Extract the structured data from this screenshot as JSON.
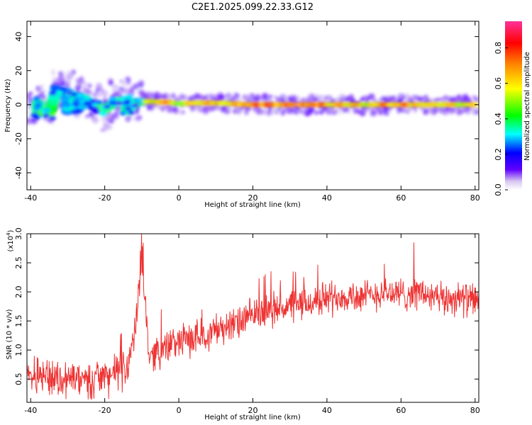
{
  "title": "C2E1.2025.099.22.33.G12",
  "chart_data": [
    {
      "type": "heatmap",
      "xlabel": "Height of straight line (km)",
      "ylabel": "Frequency (Hz)",
      "xlim": [
        -41,
        81
      ],
      "ylim": [
        -50,
        49
      ],
      "xticks": [
        -40,
        -20,
        0,
        20,
        40,
        60,
        80
      ],
      "yticks": [
        -40,
        -20,
        0,
        20,
        40
      ],
      "colorbar": {
        "label": "Normalized spectral amplitude",
        "range": [
          0,
          0.95
        ],
        "ticks": [
          0.0,
          0.2,
          0.4,
          0.6,
          0.8
        ]
      },
      "ridge": [
        {
          "x": -38,
          "y": 1.0,
          "amp": 0.4
        },
        {
          "x": -38,
          "y": -5.0,
          "amp": 0.45
        },
        {
          "x": -35,
          "y": -5.5,
          "amp": 0.5
        },
        {
          "x": -33,
          "y": 9.0,
          "amp": 0.3
        },
        {
          "x": -30,
          "y": 7.5,
          "amp": 0.3
        },
        {
          "x": -30,
          "y": -4.0,
          "amp": 0.3
        },
        {
          "x": -27,
          "y": 5.0,
          "amp": 0.35
        },
        {
          "x": -27,
          "y": -2.0,
          "amp": 0.3
        },
        {
          "x": -25,
          "y": 3.0,
          "amp": 0.35
        },
        {
          "x": -23,
          "y": -1.5,
          "amp": 0.3
        },
        {
          "x": -22,
          "y": 0.0,
          "amp": 0.4
        },
        {
          "x": -20,
          "y": -3.0,
          "amp": 0.5
        },
        {
          "x": -17,
          "y": 2.0,
          "amp": 0.35
        },
        {
          "x": -14,
          "y": 3.0,
          "amp": 0.4
        },
        {
          "x": -14,
          "y": -3.0,
          "amp": 0.4
        },
        {
          "x": -11,
          "y": 1.5,
          "amp": 0.4
        },
        {
          "x": -8,
          "y": 2.0,
          "amp": 0.6
        },
        {
          "x": -5,
          "y": 1.5,
          "amp": 0.7
        },
        {
          "x": -3,
          "y": 1.5,
          "amp": 0.85
        },
        {
          "x": 0,
          "y": 0.5,
          "amp": 0.5
        },
        {
          "x": 4,
          "y": 1.0,
          "amp": 0.7
        },
        {
          "x": 8,
          "y": 1.0,
          "amp": 0.75
        },
        {
          "x": 11,
          "y": 1.0,
          "amp": 0.7
        },
        {
          "x": 15,
          "y": 0.5,
          "amp": 0.75
        },
        {
          "x": 19,
          "y": 0.0,
          "amp": 0.8
        },
        {
          "x": 22,
          "y": 0.0,
          "amp": 0.85
        },
        {
          "x": 26,
          "y": 0.0,
          "amp": 0.8
        },
        {
          "x": 30,
          "y": 0.0,
          "amp": 0.9
        },
        {
          "x": 33,
          "y": 0.0,
          "amp": 0.9
        },
        {
          "x": 37,
          "y": 0.0,
          "amp": 0.8
        },
        {
          "x": 41,
          "y": 0.0,
          "amp": 0.7
        },
        {
          "x": 45,
          "y": 0.0,
          "amp": 0.75
        },
        {
          "x": 48,
          "y": 0.0,
          "amp": 0.7
        },
        {
          "x": 52,
          "y": 0.0,
          "amp": 0.65
        },
        {
          "x": 56,
          "y": 0.0,
          "amp": 0.75
        },
        {
          "x": 60,
          "y": 0.0,
          "amp": 0.8
        },
        {
          "x": 64,
          "y": 0.0,
          "amp": 0.7
        },
        {
          "x": 68,
          "y": 0.0,
          "amp": 0.65
        },
        {
          "x": 72,
          "y": 0.0,
          "amp": 0.7
        },
        {
          "x": 76,
          "y": 0.0,
          "amp": 0.65
        },
        {
          "x": 80,
          "y": 0.0,
          "amp": 0.6
        }
      ]
    },
    {
      "type": "line",
      "xlabel": "Height of straight line (km)",
      "ylabel": "SNR (10 * v/v)",
      "ylabel_multiplier": "(x10",
      "ylabel_multiplier_exp": "4",
      "ylabel_multiplier_close": ")",
      "xlim": [
        -41,
        81
      ],
      "ylim": [
        0.1,
        3.0
      ],
      "xticks": [
        -40,
        -20,
        0,
        20,
        40,
        60,
        80
      ],
      "yticks": [
        "0.5",
        "1.0",
        "1.5",
        "2.0",
        "2.5",
        "3.0"
      ],
      "color": "#ee3333",
      "series": [
        {
          "x": [
            -41,
            -38,
            -35,
            -32,
            -29,
            -26,
            -23,
            -20,
            -17,
            -14,
            -12,
            -10,
            -8,
            -5,
            -2,
            0,
            4,
            8,
            12,
            16,
            20,
            25,
            30,
            35,
            40,
            45,
            50,
            55,
            60,
            65,
            70,
            75,
            80
          ],
          "y": [
            0.5,
            0.6,
            0.55,
            0.5,
            0.52,
            0.45,
            0.5,
            0.55,
            0.6,
            0.7,
            1.2,
            2.6,
            0.9,
            1.0,
            1.1,
            1.15,
            1.2,
            1.3,
            1.4,
            1.45,
            1.6,
            1.7,
            1.75,
            1.8,
            1.9,
            1.95,
            1.9,
            2.0,
            1.95,
            2.0,
            1.85,
            1.9,
            1.85
          ]
        }
      ]
    }
  ]
}
